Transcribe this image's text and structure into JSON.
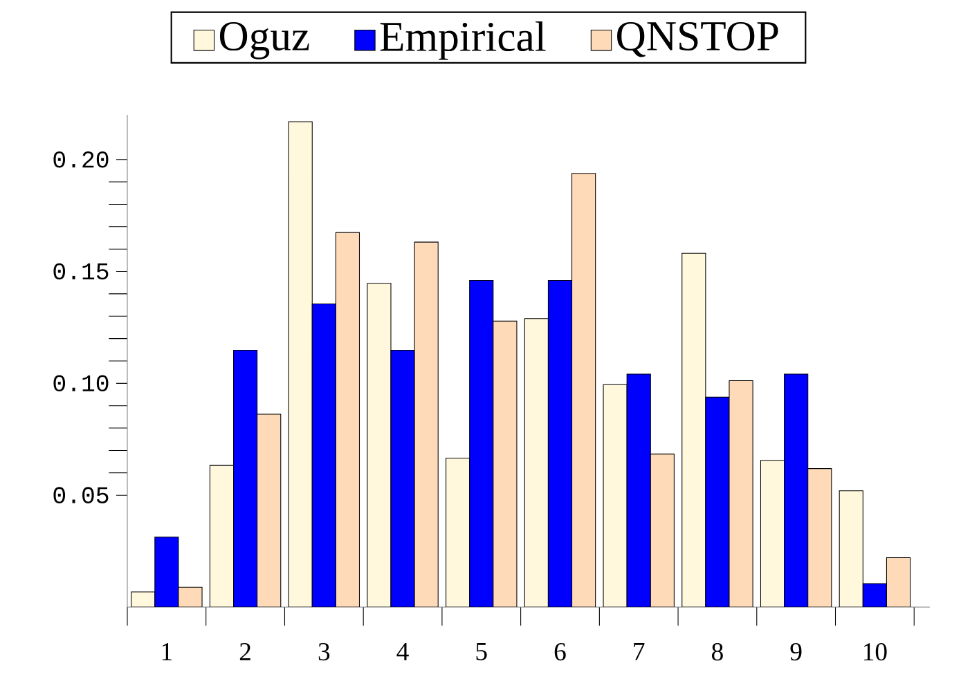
{
  "chart_data": {
    "type": "bar",
    "categories": [
      "1",
      "2",
      "3",
      "4",
      "5",
      "6",
      "7",
      "8",
      "9",
      "10"
    ],
    "series": [
      {
        "name": "Oguz",
        "color": "#fff8dc",
        "values": [
          0.0068,
          0.0633,
          0.2169,
          0.1447,
          0.0666,
          0.1289,
          0.0994,
          0.1581,
          0.0656,
          0.052
        ]
      },
      {
        "name": "Empirical",
        "color": "#0000ff",
        "values": [
          0.0313,
          0.1148,
          0.1355,
          0.1148,
          0.146,
          0.146,
          0.1041,
          0.0938,
          0.1041,
          0.0105
        ]
      },
      {
        "name": "QNSTOP",
        "color": "#ffdab9",
        "values": [
          0.0089,
          0.0862,
          0.1674,
          0.1631,
          0.1278,
          0.1938,
          0.0684,
          0.1012,
          0.0619,
          0.0221
        ]
      }
    ],
    "ylim": [
      0,
      0.22
    ],
    "yticks": [
      0.05,
      {
        "value": 0.1,
        "label": "0.10"
      },
      0.15,
      {
        "value": 0.2,
        "label": "0.20"
      }
    ],
    "legend": "top",
    "grid": false
  }
}
